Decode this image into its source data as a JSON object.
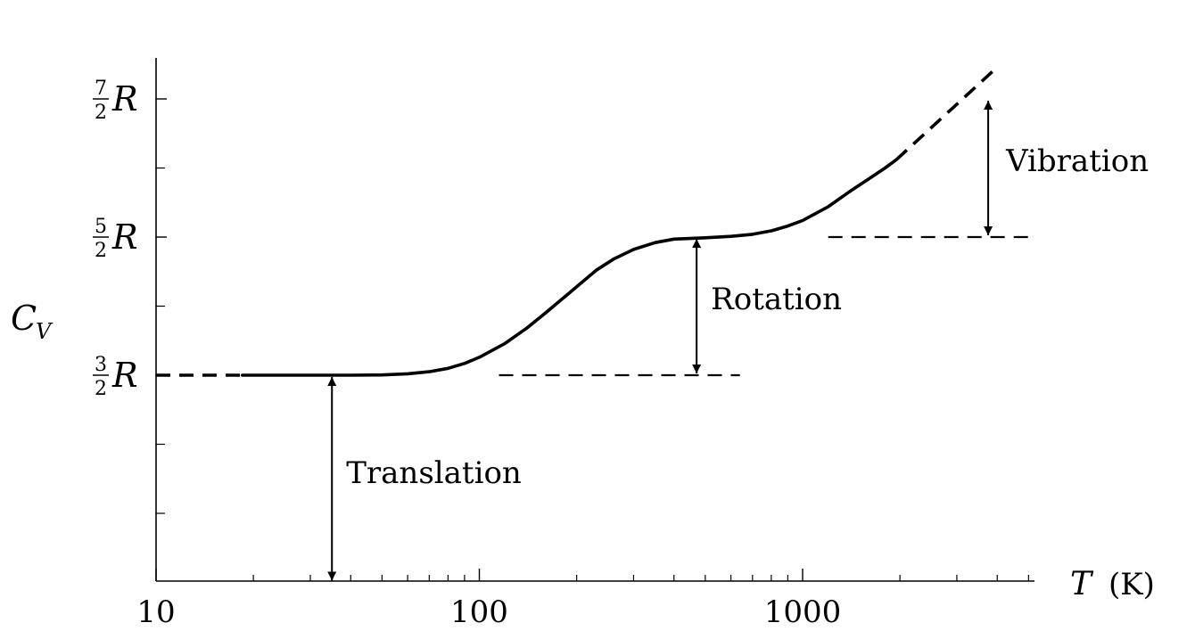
{
  "chart_data": {
    "type": "line",
    "xlabel": {
      "symbol": "T",
      "unit": "(K)"
    },
    "ylabel": {
      "symbol": "C",
      "subscript": "V"
    },
    "x_scale": "log",
    "xlim": [
      10,
      5500
    ],
    "ylim": [
      0,
      3.8
    ],
    "x_ticks": [
      {
        "value": 10,
        "label": "10"
      },
      {
        "value": 100,
        "label": "100"
      },
      {
        "value": 1000,
        "label": "1000"
      }
    ],
    "y_ticks": [
      {
        "value": 1.5,
        "num": "3",
        "den": "2",
        "unit": "R"
      },
      {
        "value": 2.5,
        "num": "5",
        "den": "2",
        "unit": "R"
      },
      {
        "value": 3.5,
        "num": "7",
        "den": "2",
        "unit": "R"
      }
    ],
    "x_minor_ticks": [
      20,
      30,
      40,
      50,
      60,
      70,
      80,
      90,
      200,
      300,
      400,
      500,
      600,
      700,
      800,
      900,
      2000,
      3000,
      4000,
      5000
    ],
    "y_minor_ticks": [
      0.5,
      1.0,
      2.0,
      3.0
    ],
    "series": [
      {
        "style": "solid",
        "points": [
          [
            18.5,
            1.5
          ],
          [
            30,
            1.5
          ],
          [
            40,
            1.5
          ],
          [
            50,
            1.502
          ],
          [
            60,
            1.51
          ],
          [
            70,
            1.525
          ],
          [
            80,
            1.55
          ],
          [
            90,
            1.585
          ],
          [
            100,
            1.63
          ],
          [
            120,
            1.73
          ],
          [
            140,
            1.84
          ],
          [
            160,
            1.95
          ],
          [
            180,
            2.05
          ],
          [
            200,
            2.14
          ],
          [
            230,
            2.26
          ],
          [
            260,
            2.34
          ],
          [
            300,
            2.41
          ],
          [
            350,
            2.46
          ],
          [
            400,
            2.485
          ],
          [
            500,
            2.495
          ],
          [
            600,
            2.505
          ],
          [
            700,
            2.52
          ],
          [
            800,
            2.545
          ],
          [
            900,
            2.58
          ],
          [
            1000,
            2.62
          ],
          [
            1200,
            2.72
          ],
          [
            1400,
            2.83
          ],
          [
            1600,
            2.92
          ],
          [
            1800,
            3.0
          ],
          [
            1950,
            3.06
          ]
        ]
      },
      {
        "style": "dashed",
        "points": [
          [
            10,
            1.5
          ],
          [
            18.5,
            1.5
          ]
        ]
      },
      {
        "style": "dashed",
        "points": [
          [
            1950,
            3.06
          ],
          [
            4000,
            3.73
          ]
        ]
      }
    ],
    "reference_lines": [
      {
        "name": "rotation-baseline",
        "y": 1.5,
        "x_from": 115,
        "x_to": 640
      },
      {
        "name": "vibration-baseline",
        "y": 2.5,
        "x_from": 1200,
        "x_to": 5000
      }
    ],
    "annotations": [
      {
        "text": "Translation",
        "x": 35,
        "y_from": 0,
        "y_to": 1.5
      },
      {
        "text": "Rotation",
        "x": 470,
        "y_from": 1.5,
        "y_to": 2.5
      },
      {
        "text": "Vibration",
        "x": 3750,
        "y_from": 2.5,
        "y_to": 3.5
      }
    ]
  }
}
